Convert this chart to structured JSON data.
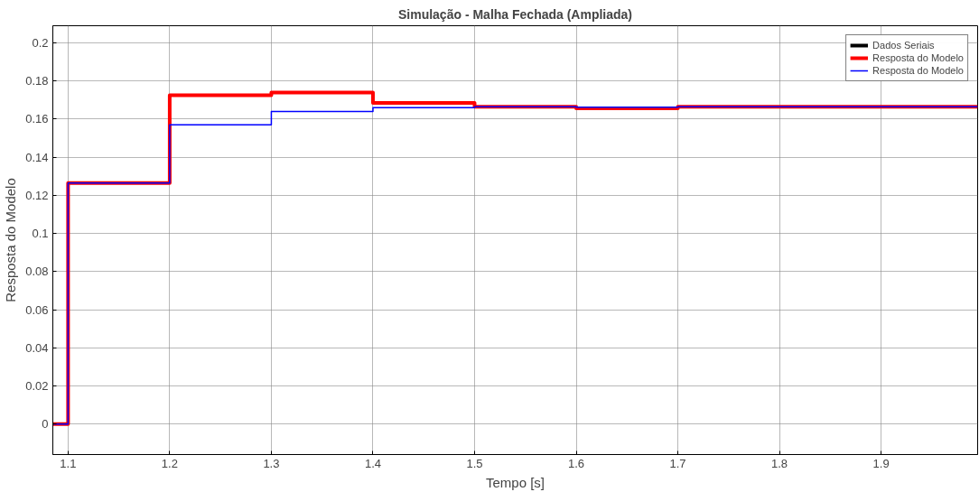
{
  "chart_data": {
    "type": "step",
    "title": "Simulação - Malha Fechada (Ampliada)",
    "xlabel": "Tempo [s]",
    "ylabel": "Resposta do Modelo",
    "x": [
      1.085,
      1.1,
      1.2,
      1.3,
      1.4,
      1.5,
      1.6,
      1.7,
      1.995
    ],
    "series": [
      {
        "name": "Dados Seriais",
        "color": "#000000",
        "values": [
          null,
          null,
          null,
          null,
          null,
          null,
          null,
          null,
          null
        ]
      },
      {
        "name": "Resposta do Modelo",
        "color": "#ff0000",
        "values": [
          0,
          0.1265,
          0.1725,
          0.174,
          0.1685,
          0.1665,
          0.1657,
          0.1665,
          0.1665
        ]
      },
      {
        "name": "Resposta do Modelo",
        "color": "#0000ff",
        "values": [
          0,
          0.1265,
          0.157,
          0.164,
          0.166,
          0.1665,
          0.1662,
          0.1665,
          0.1665
        ]
      }
    ],
    "xlim": [
      1.085,
      1.995
    ],
    "ylim": [
      -0.016,
      0.209
    ],
    "xticks": [
      1.1,
      1.2,
      1.3,
      1.4,
      1.5,
      1.6,
      1.7,
      1.8,
      1.9
    ],
    "yticks": [
      0,
      0.02,
      0.04,
      0.06,
      0.08,
      0.1,
      0.12,
      0.14,
      0.16,
      0.18,
      0.2
    ],
    "grid": true,
    "legend": "top right"
  }
}
